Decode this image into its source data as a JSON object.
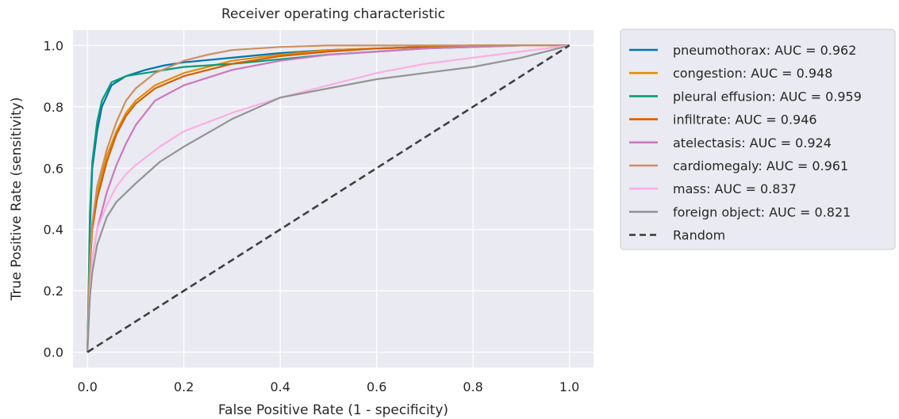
{
  "chart_data": {
    "type": "line",
    "title": "Receiver operating characteristic",
    "xlabel": "False Positive Rate (1 - specificity)",
    "ylabel": "True Positive Rate (sensitivity)",
    "xlim": [
      -0.03,
      1.05
    ],
    "ylim": [
      -0.05,
      1.05
    ],
    "xticks": [
      "0.0",
      "0.2",
      "0.4",
      "0.6",
      "0.8",
      "1.0"
    ],
    "yticks": [
      "0.0",
      "0.2",
      "0.4",
      "0.6",
      "0.8",
      "1.0"
    ],
    "grid": true,
    "legend_position": "outside-upper-right",
    "series": [
      {
        "name": "pneumothorax: AUC = 0.962",
        "color": "#0173b2",
        "x": [
          0,
          0.005,
          0.01,
          0.02,
          0.03,
          0.05,
          0.08,
          0.12,
          0.16,
          0.2,
          0.3,
          0.4,
          0.5,
          0.6,
          0.7,
          0.8,
          0.9,
          1.0
        ],
        "y": [
          0,
          0.4,
          0.6,
          0.72,
          0.8,
          0.87,
          0.9,
          0.92,
          0.935,
          0.945,
          0.96,
          0.975,
          0.985,
          0.99,
          0.995,
          0.998,
          1.0,
          1.0
        ]
      },
      {
        "name": "congestion: AUC = 0.948",
        "color": "#de8f05",
        "x": [
          0,
          0.005,
          0.01,
          0.02,
          0.04,
          0.06,
          0.08,
          0.1,
          0.14,
          0.2,
          0.3,
          0.4,
          0.5,
          0.6,
          0.7,
          0.8,
          0.9,
          1.0
        ],
        "y": [
          0,
          0.3,
          0.42,
          0.52,
          0.64,
          0.72,
          0.78,
          0.82,
          0.87,
          0.91,
          0.95,
          0.97,
          0.985,
          0.99,
          0.995,
          1.0,
          1.0,
          1.0
        ]
      },
      {
        "name": "pleural effusion: AUC = 0.959",
        "color": "#029e73",
        "x": [
          0,
          0.005,
          0.01,
          0.02,
          0.03,
          0.05,
          0.08,
          0.12,
          0.16,
          0.2,
          0.3,
          0.4,
          0.5,
          0.6,
          0.7,
          0.8,
          0.9,
          1.0
        ],
        "y": [
          0,
          0.45,
          0.62,
          0.75,
          0.82,
          0.88,
          0.9,
          0.91,
          0.92,
          0.93,
          0.94,
          0.955,
          0.97,
          0.98,
          0.99,
          0.995,
          1.0,
          1.0
        ]
      },
      {
        "name": "infiltrate: AUC = 0.946",
        "color": "#d55e00",
        "x": [
          0,
          0.005,
          0.01,
          0.02,
          0.04,
          0.06,
          0.08,
          0.1,
          0.14,
          0.2,
          0.3,
          0.4,
          0.5,
          0.6,
          0.7,
          0.8,
          0.9,
          1.0
        ],
        "y": [
          0,
          0.28,
          0.4,
          0.5,
          0.62,
          0.71,
          0.77,
          0.81,
          0.86,
          0.9,
          0.94,
          0.965,
          0.98,
          0.99,
          0.995,
          1.0,
          1.0,
          1.0
        ]
      },
      {
        "name": "atelectasis: AUC = 0.924",
        "color": "#cc78bc",
        "x": [
          0,
          0.005,
          0.01,
          0.02,
          0.04,
          0.06,
          0.08,
          0.1,
          0.14,
          0.2,
          0.3,
          0.4,
          0.5,
          0.6,
          0.7,
          0.8,
          0.9,
          1.0
        ],
        "y": [
          0,
          0.2,
          0.3,
          0.4,
          0.52,
          0.61,
          0.68,
          0.74,
          0.82,
          0.87,
          0.92,
          0.95,
          0.97,
          0.98,
          0.99,
          0.995,
          1.0,
          1.0
        ]
      },
      {
        "name": "cardiomegaly: AUC = 0.961",
        "color": "#ca9161",
        "x": [
          0,
          0.005,
          0.01,
          0.02,
          0.04,
          0.06,
          0.08,
          0.1,
          0.14,
          0.2,
          0.25,
          0.3,
          0.4,
          0.5,
          0.6,
          0.8,
          0.9,
          1.0
        ],
        "y": [
          0,
          0.3,
          0.42,
          0.54,
          0.66,
          0.75,
          0.82,
          0.86,
          0.91,
          0.95,
          0.97,
          0.985,
          0.995,
          1.0,
          1.0,
          1.0,
          1.0,
          1.0
        ]
      },
      {
        "name": "mass: AUC = 0.837",
        "color": "#fbafe4",
        "x": [
          0,
          0.005,
          0.01,
          0.02,
          0.04,
          0.06,
          0.08,
          0.1,
          0.15,
          0.2,
          0.3,
          0.4,
          0.5,
          0.6,
          0.7,
          0.8,
          0.9,
          1.0
        ],
        "y": [
          0,
          0.2,
          0.3,
          0.4,
          0.48,
          0.54,
          0.58,
          0.61,
          0.67,
          0.72,
          0.78,
          0.83,
          0.87,
          0.91,
          0.94,
          0.96,
          0.98,
          1.0
        ]
      },
      {
        "name": "foreign object: AUC = 0.821",
        "color": "#949494",
        "x": [
          0,
          0.005,
          0.01,
          0.02,
          0.04,
          0.06,
          0.08,
          0.1,
          0.15,
          0.2,
          0.3,
          0.4,
          0.5,
          0.6,
          0.7,
          0.8,
          0.9,
          1.0
        ],
        "y": [
          0,
          0.18,
          0.26,
          0.35,
          0.44,
          0.49,
          0.52,
          0.55,
          0.62,
          0.67,
          0.76,
          0.83,
          0.86,
          0.89,
          0.91,
          0.93,
          0.96,
          1.0
        ]
      },
      {
        "name": "Random",
        "color": "#404040",
        "dashed": true,
        "x": [
          0,
          1
        ],
        "y": [
          0,
          1
        ]
      }
    ]
  }
}
